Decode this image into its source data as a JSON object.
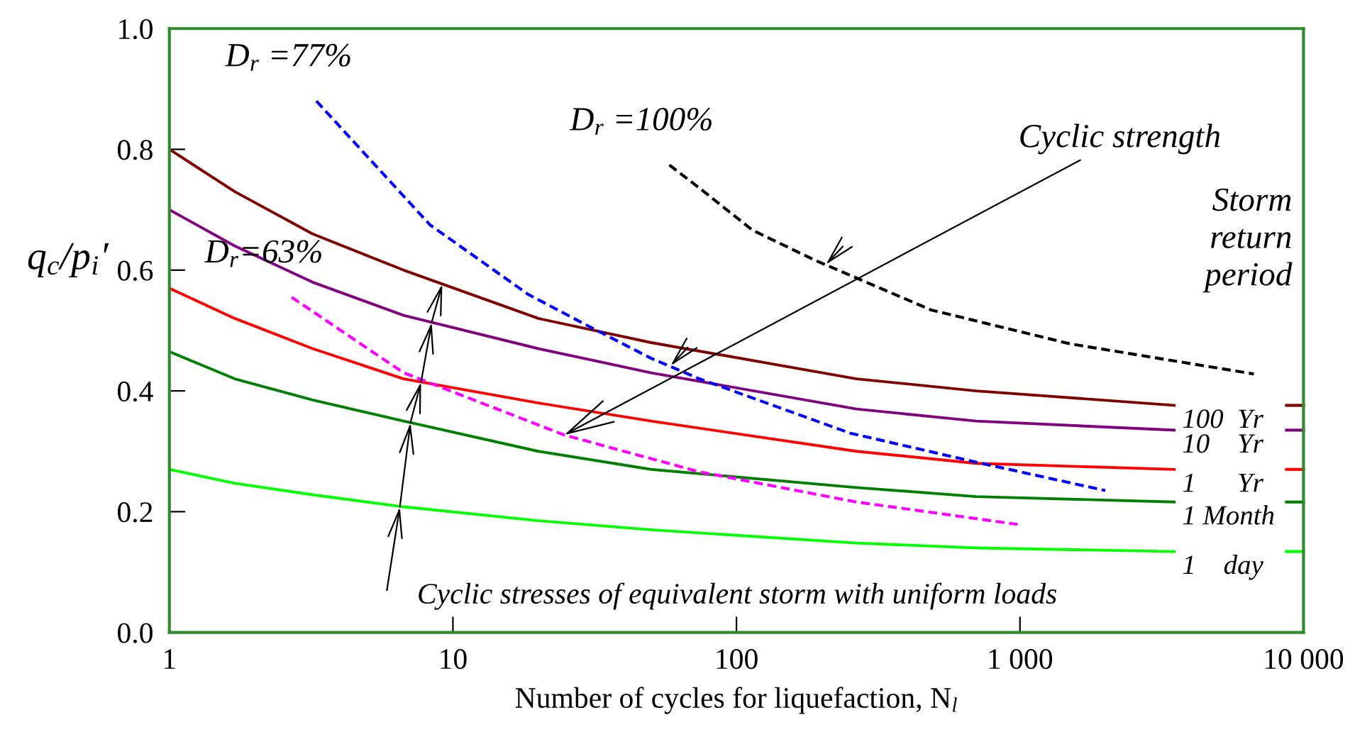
{
  "chart_data": {
    "type": "line",
    "xlabel": "Number of cycles for liquefaction, N$_{l}$",
    "ylabel": "q$_{c}$/p$_{i}$′",
    "legend_title": "Storm\nreturn\nperiod",
    "legend": "right",
    "log": "x",
    "grid": false,
    "marker": "none",
    "xlim": [
      1,
      10000
    ],
    "xticks": [
      1,
      10,
      100,
      {
        "value": 1000,
        "label": "1 000"
      },
      {
        "value": 10000,
        "label": "10 000"
      }
    ],
    "ylim": [
      0,
      1
    ],
    "yticks": [
      {
        "value": 0,
        "label": "0.0"
      },
      {
        "value": 0.2,
        "label": "0.2"
      },
      {
        "value": 0.4,
        "label": "0.4"
      },
      {
        "value": 0.6,
        "label": "0.6"
      },
      {
        "value": 0.8,
        "label": "0.8"
      },
      {
        "value": 1,
        "label": "1.0"
      }
    ],
    "series": [
      {
        "name": "100  Yr",
        "color": "#800000",
        "line_style": "solid",
        "x": [
          1,
          1.7,
          3.2,
          6.7,
          20,
          50,
          265,
          700,
          3500
        ],
        "values": [
          0.8,
          0.73,
          0.66,
          0.6,
          0.52,
          0.48,
          0.42,
          0.4,
          0.376
        ]
      },
      {
        "name": "10    Yr",
        "color": "#800080",
        "line_style": "solid",
        "x": [
          1,
          1.7,
          3.2,
          6.7,
          20,
          50,
          265,
          700,
          3500
        ],
        "values": [
          0.7,
          0.64,
          0.58,
          0.525,
          0.47,
          0.43,
          0.37,
          0.35,
          0.335
        ]
      },
      {
        "name": "1      Yr",
        "color": "#ff0000",
        "line_style": "solid",
        "x": [
          1,
          1.7,
          3.2,
          6.7,
          20,
          50,
          265,
          700,
          3500
        ],
        "values": [
          0.57,
          0.52,
          0.47,
          0.42,
          0.38,
          0.35,
          0.3,
          0.28,
          0.27
        ]
      },
      {
        "name": "1 Month",
        "color": "#008000",
        "line_style": "solid",
        "x": [
          1,
          1.7,
          3.2,
          6.7,
          20,
          50,
          265,
          700,
          3500
        ],
        "values": [
          0.465,
          0.42,
          0.385,
          0.35,
          0.3,
          0.27,
          0.24,
          0.225,
          0.216
        ]
      },
      {
        "name": "1    day",
        "color": "#00ff00",
        "line_style": "solid",
        "x": [
          1,
          1.7,
          3.2,
          6.7,
          20,
          50,
          265,
          700,
          3500
        ],
        "values": [
          0.27,
          0.247,
          0.228,
          0.208,
          0.185,
          0.17,
          0.148,
          0.14,
          0.134
        ]
      },
      {
        "name": "D$_{r}$ =77%",
        "color": "#0000ff",
        "line_style": "dashed",
        "x": [
          3.3,
          8.3,
          18.4,
          28.5,
          50,
          74,
          252,
          700,
          2000
        ],
        "values": [
          0.88,
          0.675,
          0.56,
          0.513,
          0.454,
          0.42,
          0.33,
          0.282,
          0.235
        ]
      },
      {
        "name": "D$_{r}$=63%",
        "color": "#ff00ff",
        "line_style": "dashed",
        "x": [
          2.7,
          6.7,
          24.7,
          74,
          265,
          980
        ],
        "values": [
          0.555,
          0.43,
          0.327,
          0.266,
          0.216,
          0.179
        ]
      },
      {
        "name": "D$_{r}$ =100%",
        "color": "#000000",
        "line_style": "dashed",
        "x": [
          58,
          74,
          114,
          190,
          486,
          1500,
          6680
        ],
        "values": [
          0.774,
          0.736,
          0.666,
          0.616,
          0.534,
          0.478,
          0.428
        ]
      }
    ],
    "annotations": [
      {
        "text": "Cyclic strength",
        "x": 24.7,
        "y": 0.327
      },
      {
        "text": "Cyclic stresses of equivalent storm with uniform loads",
        "x": 6.5,
        "y": 0.208
      }
    ]
  }
}
